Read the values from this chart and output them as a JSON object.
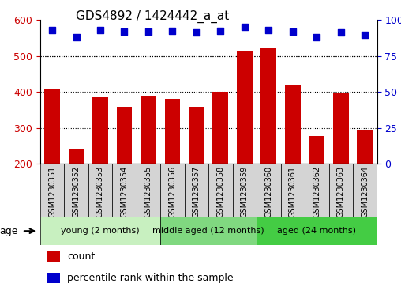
{
  "title": "GDS4892 / 1424442_a_at",
  "samples": [
    "GSM1230351",
    "GSM1230352",
    "GSM1230353",
    "GSM1230354",
    "GSM1230355",
    "GSM1230356",
    "GSM1230357",
    "GSM1230358",
    "GSM1230359",
    "GSM1230360",
    "GSM1230361",
    "GSM1230362",
    "GSM1230363",
    "GSM1230364"
  ],
  "counts": [
    410,
    240,
    385,
    358,
    390,
    380,
    358,
    400,
    515,
    522,
    420,
    278,
    395,
    293
  ],
  "percentile_y_left": [
    573,
    553,
    572,
    568,
    568,
    570,
    565,
    570,
    580,
    573,
    568,
    553,
    566,
    560
  ],
  "bar_color": "#cc0000",
  "dot_color": "#0000cc",
  "bar_bottom": 200,
  "ylim_left": [
    200,
    600
  ],
  "yticks_left": [
    200,
    300,
    400,
    500,
    600
  ],
  "yticks_right_labels": [
    "0",
    "25",
    "50",
    "75",
    "100%"
  ],
  "grid_values": [
    300,
    400,
    500
  ],
  "groups": [
    {
      "label": "young (2 months)",
      "start": 0,
      "end": 5,
      "color": "#c8f0c0"
    },
    {
      "label": "middle aged (12 months)",
      "start": 5,
      "end": 9,
      "color": "#80d880"
    },
    {
      "label": "aged (24 months)",
      "start": 9,
      "end": 14,
      "color": "#44cc44"
    }
  ],
  "age_label": "age",
  "legend_count_label": "count",
  "legend_pct_label": "percentile rank within the sample",
  "title_fontsize": 11,
  "tick_fontsize": 9,
  "group_label_fontsize": 8,
  "sample_fontsize": 7
}
